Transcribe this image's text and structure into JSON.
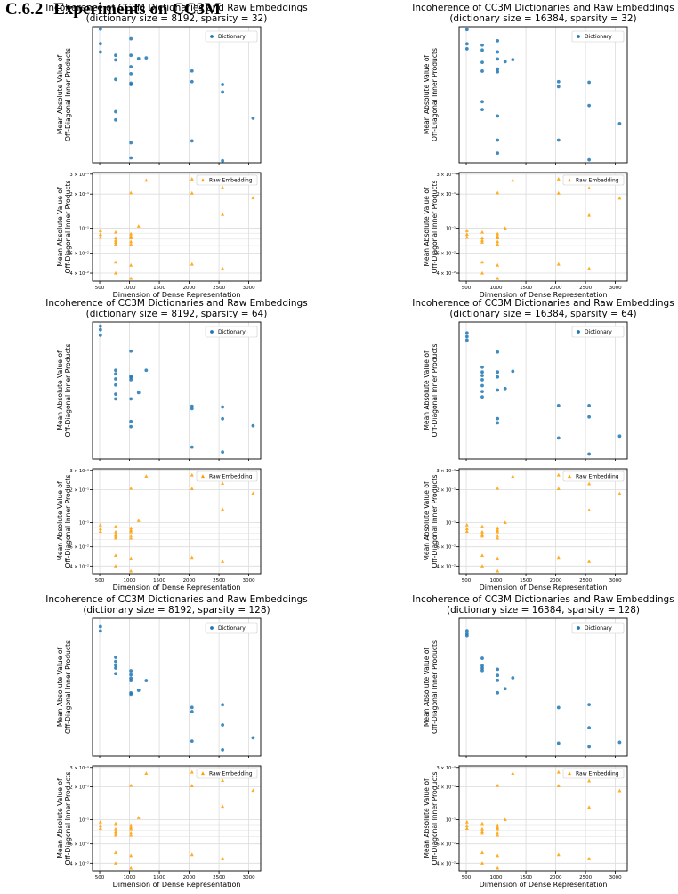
{
  "section": {
    "number": "C.6.2",
    "title": "Experiments on CC3M"
  },
  "shared": {
    "ylabel_line1": "Mean Absolute Value of",
    "ylabel_line2": "Off-Diagonal Inner Products",
    "xlabel": "Dimension of Dense Representation",
    "x_ticks": [
      "500",
      "1000",
      "1500",
      "2000",
      "2500",
      "3000"
    ],
    "legend_dictionary": "Dictionary",
    "legend_raw": "Raw Embedding",
    "raw_ticks": [
      "3 × 10⁻¹",
      "2 × 10⁻¹",
      "10⁻¹",
      "6 × 10⁻²",
      "4 × 10⁻²"
    ],
    "colors": {
      "dictionary": "#1f77b4",
      "raw": "#ff9f00"
    }
  },
  "chart_data": [
    {
      "type": "scatter",
      "title_line1": "Incoherence of CC3M Dictionaries and Raw Embeddings",
      "title_line2": "(dictionary size = 8192, sparsity = 32)",
      "top": {
        "y_range": [
          0.0265,
          0.0445
        ],
        "y_ticks": [
          "4 × 10⁻²",
          "3 × 10⁻²"
        ],
        "x": [
          512,
          512,
          512,
          768,
          768,
          768,
          768,
          768,
          1024,
          1024,
          1024,
          1024,
          1024,
          1024,
          1024,
          1024,
          1152,
          1280,
          2048,
          2048,
          2048,
          2560,
          2560,
          2560,
          3072
        ],
        "y": [
          0.0441,
          0.0417,
          0.0404,
          0.0399,
          0.0392,
          0.0364,
          0.0322,
          0.0312,
          0.0425,
          0.0399,
          0.0382,
          0.0372,
          0.0359,
          0.0357,
          0.0286,
          0.027,
          0.0394,
          0.0395,
          0.0376,
          0.0361,
          0.0288,
          0.0357,
          0.0347,
          0.0267,
          0.0314
        ]
      },
      "raw": {
        "y_range": [
          0.034,
          0.31
        ],
        "y_ticks": [
          0.3,
          0.2,
          0.1,
          0.06,
          0.04
        ],
        "x": [
          512,
          512,
          512,
          768,
          768,
          768,
          768,
          768,
          768,
          768,
          1024,
          1024,
          1024,
          1024,
          1024,
          1024,
          1024,
          1024,
          1152,
          1280,
          2048,
          2048,
          2048,
          2560,
          2560,
          2560,
          3072
        ],
        "y": [
          0.095,
          0.088,
          0.083,
          0.092,
          0.082,
          0.078,
          0.075,
          0.072,
          0.05,
          0.04,
          0.205,
          0.089,
          0.085,
          0.082,
          0.076,
          0.072,
          0.047,
          0.036,
          0.104,
          0.265,
          0.272,
          0.204,
          0.048,
          0.228,
          0.132,
          0.044,
          0.185
        ]
      }
    },
    {
      "type": "scatter",
      "title_line1": "Incoherence of CC3M Dictionaries and Raw Embeddings",
      "title_line2": "(dictionary size = 16384, sparsity = 32)",
      "top": {
        "y_range": [
          0.0252,
          0.0435
        ],
        "y_ticks": [
          "4 × 10⁻²",
          "3 × 10⁻²"
        ],
        "x": [
          512,
          512,
          512,
          768,
          768,
          768,
          768,
          768,
          768,
          1024,
          1024,
          1024,
          1024,
          1024,
          1024,
          1024,
          1024,
          1152,
          1280,
          2048,
          2048,
          2048,
          2560,
          2560,
          2560,
          3072
        ],
        "y": [
          0.043,
          0.0406,
          0.0398,
          0.0404,
          0.0396,
          0.0377,
          0.0364,
          0.0322,
          0.0312,
          0.0411,
          0.0393,
          0.0382,
          0.0367,
          0.0363,
          0.0304,
          0.0276,
          0.0262,
          0.0378,
          0.0381,
          0.0349,
          0.0342,
          0.0276,
          0.0348,
          0.0317,
          0.0255,
          0.0295
        ]
      },
      "raw": {
        "y_range": [
          0.034,
          0.31
        ],
        "y_ticks": [
          0.3,
          0.2,
          0.1,
          0.06,
          0.04
        ],
        "x": [
          512,
          512,
          512,
          768,
          768,
          768,
          768,
          768,
          768,
          1024,
          1024,
          1024,
          1024,
          1024,
          1024,
          1024,
          1024,
          1152,
          1280,
          2048,
          2048,
          2048,
          2560,
          2560,
          2560,
          3072
        ],
        "y": [
          0.095,
          0.088,
          0.083,
          0.092,
          0.082,
          0.078,
          0.075,
          0.05,
          0.04,
          0.205,
          0.089,
          0.085,
          0.082,
          0.076,
          0.072,
          0.047,
          0.036,
          0.1,
          0.265,
          0.272,
          0.204,
          0.048,
          0.226,
          0.13,
          0.044,
          0.184
        ]
      }
    },
    {
      "type": "scatter",
      "title_line1": "Incoherence of CC3M Dictionaries and Raw Embeddings",
      "title_line2": "(dictionary size = 8192, sparsity = 64)",
      "top": {
        "y_range": [
          0.0245,
          0.0425
        ],
        "y_ticks": [
          "4 × 10⁻²",
          "3 × 10⁻²"
        ],
        "x": [
          512,
          512,
          512,
          768,
          768,
          768,
          768,
          768,
          768,
          1024,
          1024,
          1024,
          1024,
          1024,
          1024,
          1024,
          1152,
          1280,
          2048,
          2048,
          2048,
          2560,
          2560,
          2560,
          3072
        ],
        "y": [
          0.0418,
          0.0412,
          0.0403,
          0.035,
          0.0345,
          0.0338,
          0.033,
          0.0318,
          0.0312,
          0.0378,
          0.0342,
          0.034,
          0.0337,
          0.0312,
          0.0285,
          0.0279,
          0.032,
          0.035,
          0.0303,
          0.03,
          0.0257,
          0.0302,
          0.0288,
          0.0252,
          0.028
        ]
      },
      "raw": {
        "y_range": [
          0.034,
          0.31
        ],
        "y_ticks": [
          0.3,
          0.2,
          0.1,
          0.06,
          0.04
        ],
        "x": [
          512,
          512,
          512,
          768,
          768,
          768,
          768,
          768,
          768,
          768,
          1024,
          1024,
          1024,
          1024,
          1024,
          1024,
          1024,
          1024,
          1152,
          1280,
          2048,
          2048,
          2048,
          2560,
          2560,
          2560,
          3072
        ],
        "y": [
          0.095,
          0.088,
          0.083,
          0.092,
          0.082,
          0.078,
          0.075,
          0.072,
          0.05,
          0.04,
          0.205,
          0.089,
          0.085,
          0.082,
          0.076,
          0.072,
          0.047,
          0.036,
          0.104,
          0.265,
          0.272,
          0.204,
          0.048,
          0.228,
          0.132,
          0.044,
          0.185
        ]
      }
    },
    {
      "type": "scatter",
      "title_line1": "Incoherence of CC3M Dictionaries and Raw Embeddings",
      "title_line2": "(dictionary size = 16384, sparsity = 64)",
      "top": {
        "y_range": [
          0.024,
          0.0425
        ],
        "y_ticks": [
          "4 × 10⁻²",
          "3 × 10⁻²"
        ],
        "x": [
          512,
          512,
          512,
          768,
          768,
          768,
          768,
          768,
          768,
          768,
          1024,
          1024,
          1024,
          1024,
          1024,
          1024,
          1152,
          1280,
          2048,
          2048,
          2560,
          2560,
          2560,
          3072
        ],
        "y": [
          0.0406,
          0.04,
          0.0394,
          0.0352,
          0.0345,
          0.034,
          0.0334,
          0.0326,
          0.0318,
          0.0311,
          0.0375,
          0.0345,
          0.0338,
          0.032,
          0.0284,
          0.0279,
          0.0322,
          0.0346,
          0.03,
          0.0262,
          0.03,
          0.0286,
          0.0245,
          0.0264
        ]
      },
      "raw": {
        "y_range": [
          0.034,
          0.31
        ],
        "y_ticks": [
          0.3,
          0.2,
          0.1,
          0.06,
          0.04
        ],
        "x": [
          512,
          512,
          512,
          768,
          768,
          768,
          768,
          768,
          768,
          1024,
          1024,
          1024,
          1024,
          1024,
          1024,
          1024,
          1024,
          1152,
          1280,
          2048,
          2048,
          2048,
          2560,
          2560,
          2560,
          3072
        ],
        "y": [
          0.095,
          0.088,
          0.083,
          0.092,
          0.082,
          0.078,
          0.075,
          0.05,
          0.04,
          0.205,
          0.089,
          0.085,
          0.082,
          0.076,
          0.072,
          0.047,
          0.036,
          0.1,
          0.265,
          0.272,
          0.204,
          0.048,
          0.226,
          0.13,
          0.044,
          0.184
        ]
      }
    },
    {
      "type": "scatter",
      "title_line1": "Incoherence of CC3M Dictionaries and Raw Embeddings",
      "title_line2": "(dictionary size = 8192, sparsity = 128)",
      "top": {
        "y_range": [
          0.0185,
          0.0415
        ],
        "y_ticks": [
          "4 × 10⁻²",
          "3 × 10⁻²",
          "2 × 10⁻²"
        ],
        "x": [
          512,
          512,
          768,
          768,
          768,
          768,
          768,
          1024,
          1024,
          1024,
          1024,
          1024,
          1024,
          1152,
          1280,
          2048,
          2048,
          2048,
          2560,
          2560,
          2560,
          3072
        ],
        "y": [
          0.0395,
          0.0385,
          0.033,
          0.0322,
          0.0315,
          0.031,
          0.03,
          0.0305,
          0.0298,
          0.0292,
          0.0288,
          0.0268,
          0.0266,
          0.0272,
          0.0288,
          0.0246,
          0.024,
          0.0202,
          0.025,
          0.0222,
          0.0192,
          0.0206
        ]
      },
      "raw": {
        "y_range": [
          0.034,
          0.31
        ],
        "y_ticks": [
          0.3,
          0.2,
          0.1,
          0.06,
          0.04
        ],
        "x": [
          512,
          512,
          512,
          768,
          768,
          768,
          768,
          768,
          768,
          768,
          1024,
          1024,
          1024,
          1024,
          1024,
          1024,
          1024,
          1024,
          1152,
          1280,
          2048,
          2048,
          2048,
          2560,
          2560,
          2560,
          3072
        ],
        "y": [
          0.095,
          0.088,
          0.083,
          0.092,
          0.082,
          0.078,
          0.075,
          0.072,
          0.05,
          0.04,
          0.205,
          0.089,
          0.085,
          0.082,
          0.076,
          0.072,
          0.047,
          0.036,
          0.104,
          0.265,
          0.272,
          0.204,
          0.048,
          0.228,
          0.132,
          0.044,
          0.185
        ]
      }
    },
    {
      "type": "scatter",
      "title_line1": "Incoherence of CC3M Dictionaries and Raw Embeddings",
      "title_line2": "(dictionary size = 16384, sparsity = 128)",
      "top": {
        "y_range": [
          0.019,
          0.0405
        ],
        "y_ticks": [
          "3 × 10⁻²",
          "2 × 10⁻²"
        ],
        "x": [
          512,
          512,
          512,
          768,
          768,
          768,
          768,
          1024,
          1024,
          1024,
          1024,
          1152,
          1280,
          2048,
          2048,
          2560,
          2560,
          2560,
          3072
        ],
        "y": [
          0.0378,
          0.0372,
          0.0368,
          0.0325,
          0.0312,
          0.0308,
          0.0304,
          0.0306,
          0.0296,
          0.0288,
          0.0269,
          0.0275,
          0.0292,
          0.0248,
          0.0204,
          0.0252,
          0.0222,
          0.02,
          0.0205
        ]
      },
      "raw": {
        "y_range": [
          0.034,
          0.31
        ],
        "y_ticks": [
          0.3,
          0.2,
          0.1,
          0.06,
          0.04
        ],
        "x": [
          512,
          512,
          512,
          768,
          768,
          768,
          768,
          768,
          768,
          1024,
          1024,
          1024,
          1024,
          1024,
          1024,
          1024,
          1024,
          1152,
          1280,
          2048,
          2048,
          2048,
          2560,
          2560,
          2560,
          3072
        ],
        "y": [
          0.095,
          0.088,
          0.083,
          0.092,
          0.082,
          0.078,
          0.075,
          0.05,
          0.04,
          0.205,
          0.089,
          0.085,
          0.082,
          0.076,
          0.072,
          0.047,
          0.036,
          0.1,
          0.265,
          0.272,
          0.204,
          0.048,
          0.226,
          0.13,
          0.044,
          0.184
        ]
      }
    }
  ]
}
